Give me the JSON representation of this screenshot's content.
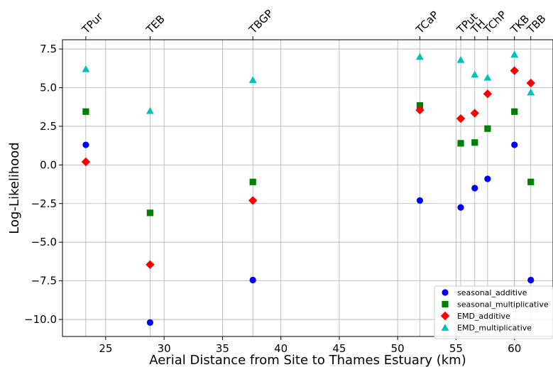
{
  "chart_data": {
    "type": "scatter",
    "xlabel": "Aerial Distance from Site to Thames Estuary (km)",
    "ylabel": "Log-Likelihood",
    "xlim": [
      21.3,
      63.3
    ],
    "ylim": [
      -11.1,
      8.1
    ],
    "x_ticks": [
      25,
      30,
      35,
      40,
      45,
      50,
      55,
      60
    ],
    "y_ticks": [
      -10.0,
      -7.5,
      -5.0,
      -2.5,
      0.0,
      2.5,
      5.0,
      7.5
    ],
    "x_tick_labels": [
      "25",
      "30",
      "35",
      "40",
      "45",
      "50",
      "55",
      "60"
    ],
    "y_tick_labels": [
      "−10.0",
      "−7.5",
      "−5.0",
      "−2.5",
      "0.0",
      "2.5",
      "5.0",
      "7.5"
    ],
    "grid": true,
    "legend_position": "lower-right",
    "sites": [
      {
        "label": "TPur",
        "x": 23.3
      },
      {
        "label": "TEB",
        "x": 28.8
      },
      {
        "label": "TBGP",
        "x": 37.6
      },
      {
        "label": "TCaP",
        "x": 51.9
      },
      {
        "label": "TPut",
        "x": 55.4
      },
      {
        "label": "TH",
        "x": 56.6
      },
      {
        "label": "TChP",
        "x": 57.7
      },
      {
        "label": "TKB",
        "x": 60.0
      },
      {
        "label": "TBB",
        "x": 61.4
      }
    ],
    "series": [
      {
        "name": "seasonal_additive",
        "marker": "circle",
        "color": "#0000ff",
        "points": [
          {
            "x": 23.3,
            "y": 1.3
          },
          {
            "x": 28.8,
            "y": -10.2
          },
          {
            "x": 37.6,
            "y": -7.45
          },
          {
            "x": 51.9,
            "y": -2.3
          },
          {
            "x": 55.4,
            "y": -2.75
          },
          {
            "x": 56.6,
            "y": -1.5
          },
          {
            "x": 57.7,
            "y": -0.9
          },
          {
            "x": 60.0,
            "y": 1.3
          },
          {
            "x": 61.4,
            "y": -7.45
          }
        ]
      },
      {
        "name": "seasonal_multiplicative",
        "marker": "square",
        "color": "#008000",
        "points": [
          {
            "x": 23.3,
            "y": 3.45
          },
          {
            "x": 28.8,
            "y": -3.1
          },
          {
            "x": 37.6,
            "y": -1.1
          },
          {
            "x": 51.9,
            "y": 3.85
          },
          {
            "x": 55.4,
            "y": 1.4
          },
          {
            "x": 56.6,
            "y": 1.45
          },
          {
            "x": 57.7,
            "y": 2.35
          },
          {
            "x": 60.0,
            "y": 3.45
          },
          {
            "x": 61.4,
            "y": -1.1
          }
        ]
      },
      {
        "name": "EMD_additive",
        "marker": "diamond",
        "color": "#ff0000",
        "points": [
          {
            "x": 23.3,
            "y": 0.2
          },
          {
            "x": 28.8,
            "y": -6.45
          },
          {
            "x": 37.6,
            "y": -2.3
          },
          {
            "x": 51.9,
            "y": 3.55
          },
          {
            "x": 55.4,
            "y": 3.0
          },
          {
            "x": 56.6,
            "y": 3.35
          },
          {
            "x": 57.7,
            "y": 4.6
          },
          {
            "x": 60.0,
            "y": 6.1
          },
          {
            "x": 61.4,
            "y": 5.3
          }
        ]
      },
      {
        "name": "EMD_multiplicative",
        "marker": "triangle",
        "color": "#00bfbf",
        "points": [
          {
            "x": 23.3,
            "y": 6.2
          },
          {
            "x": 28.8,
            "y": 3.5
          },
          {
            "x": 37.6,
            "y": 5.5
          },
          {
            "x": 51.9,
            "y": 7.0
          },
          {
            "x": 55.4,
            "y": 6.8
          },
          {
            "x": 56.6,
            "y": 5.85
          },
          {
            "x": 57.7,
            "y": 5.65
          },
          {
            "x": 60.0,
            "y": 7.15
          },
          {
            "x": 61.4,
            "y": 4.7
          }
        ]
      }
    ]
  }
}
